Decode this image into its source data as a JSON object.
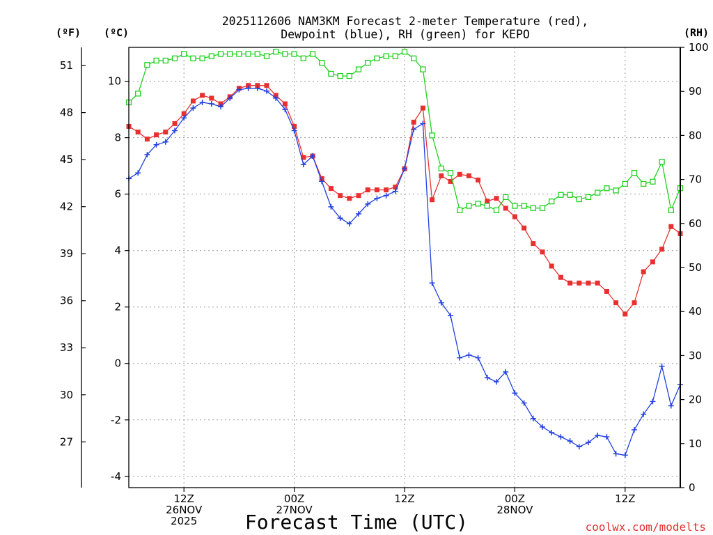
{
  "chart_data": {
    "type": "line",
    "title_lines": [
      "2025112606 NAM3KM Forecast 2-meter Temperature (red),",
      "Dewpoint (blue), RH (green) for KEPO"
    ],
    "xlabel": "Forecast Time (UTC)",
    "credit": "coolwx.com/modelts",
    "units": {
      "left_f": "(ºF)",
      "left_c": "(ºC)",
      "right": "(RH)"
    },
    "x_range_hours": [
      6,
      66
    ],
    "y_celsius_range": [
      -4.4,
      11.2
    ],
    "y_rh_range": [
      0,
      100
    ],
    "celsius_ticks": [
      -4,
      -2,
      0,
      2,
      4,
      6,
      8,
      10
    ],
    "fahrenheit_ticks": [
      27,
      30,
      33,
      36,
      39,
      42,
      45,
      48,
      51
    ],
    "rh_ticks": [
      0,
      10,
      20,
      30,
      40,
      50,
      60,
      70,
      80,
      90,
      100
    ],
    "x_ticks": [
      {
        "hour": 12,
        "lines": [
          "12Z",
          "26NOV",
          "2025"
        ]
      },
      {
        "hour": 24,
        "lines": [
          "00Z",
          "27NOV"
        ]
      },
      {
        "hour": 36,
        "lines": [
          "12Z"
        ]
      },
      {
        "hour": 48,
        "lines": [
          "00Z",
          "28NOV"
        ]
      },
      {
        "hour": 60,
        "lines": [
          "12Z"
        ]
      }
    ],
    "series": [
      {
        "name": "Temperature",
        "color": "#e83030",
        "marker": "filled-square",
        "axis": "celsius",
        "x": [
          6,
          7,
          8,
          9,
          10,
          11,
          12,
          13,
          14,
          15,
          16,
          17,
          18,
          19,
          20,
          21,
          22,
          23,
          24,
          25,
          26,
          27,
          28,
          29,
          30,
          31,
          32,
          33,
          34,
          35,
          36,
          37,
          38,
          39,
          40,
          41,
          42,
          43,
          44,
          45,
          46,
          47,
          48,
          49,
          50,
          51,
          52,
          53,
          54,
          55,
          56,
          57,
          58,
          59,
          60,
          61,
          62,
          63,
          64,
          65,
          66
        ],
        "values": [
          8.4,
          8.2,
          7.95,
          8.1,
          8.2,
          8.5,
          8.85,
          9.3,
          9.5,
          9.4,
          9.2,
          9.45,
          9.75,
          9.85,
          9.85,
          9.85,
          9.5,
          9.2,
          8.4,
          7.3,
          7.35,
          6.55,
          6.2,
          5.95,
          5.85,
          5.95,
          6.15,
          6.15,
          6.15,
          6.25,
          6.9,
          8.55,
          9.05,
          5.8,
          6.65,
          6.45,
          6.7,
          6.65,
          6.5,
          5.75,
          5.85,
          5.5,
          5.2,
          4.8,
          4.25,
          3.95,
          3.45,
          3.05,
          2.85,
          2.85,
          2.85,
          2.85,
          2.55,
          2.15,
          1.75,
          2.15,
          3.25,
          3.6,
          4.05,
          4.85,
          4.6
        ]
      },
      {
        "name": "Dewpoint",
        "color": "#2040e0",
        "marker": "plus",
        "axis": "celsius",
        "x": [
          6,
          7,
          8,
          9,
          10,
          11,
          12,
          13,
          14,
          15,
          16,
          17,
          18,
          19,
          20,
          21,
          22,
          23,
          24,
          25,
          26,
          27,
          28,
          29,
          30,
          31,
          32,
          33,
          34,
          35,
          36,
          37,
          38,
          39,
          40,
          41,
          42,
          43,
          44,
          45,
          46,
          47,
          48,
          49,
          50,
          51,
          52,
          53,
          54,
          55,
          56,
          57,
          58,
          59,
          60,
          61,
          62,
          63,
          64,
          65,
          66
        ],
        "values": [
          6.55,
          6.75,
          7.4,
          7.75,
          7.85,
          8.25,
          8.7,
          9.05,
          9.25,
          9.2,
          9.1,
          9.4,
          9.7,
          9.75,
          9.75,
          9.65,
          9.4,
          9.0,
          8.25,
          7.05,
          7.35,
          6.45,
          5.55,
          5.15,
          4.95,
          5.3,
          5.65,
          5.85,
          5.95,
          6.1,
          6.9,
          8.3,
          8.5,
          2.85,
          2.15,
          1.7,
          0.2,
          0.3,
          0.2,
          -0.5,
          -0.65,
          -0.3,
          -1.05,
          -1.4,
          -1.95,
          -2.25,
          -2.45,
          -2.6,
          -2.75,
          -2.95,
          -2.8,
          -2.55,
          -2.6,
          -3.2,
          -3.25,
          -2.35,
          -1.8,
          -1.35,
          -0.1,
          -1.5,
          -0.75
        ]
      },
      {
        "name": "RH",
        "color": "#20d020",
        "marker": "open-square",
        "axis": "rh",
        "x": [
          6,
          7,
          8,
          9,
          10,
          11,
          12,
          13,
          14,
          15,
          16,
          17,
          18,
          19,
          20,
          21,
          22,
          23,
          24,
          25,
          26,
          27,
          28,
          29,
          30,
          31,
          32,
          33,
          34,
          35,
          36,
          37,
          38,
          39,
          40,
          41,
          42,
          43,
          44,
          45,
          46,
          47,
          48,
          49,
          50,
          51,
          52,
          53,
          54,
          55,
          56,
          57,
          58,
          59,
          60,
          61,
          62,
          63,
          64,
          65,
          66
        ],
        "values": [
          87.5,
          89.5,
          96,
          97,
          97,
          97.5,
          98.5,
          97.5,
          97.5,
          98,
          98.5,
          98.5,
          98.5,
          98.5,
          98.5,
          98,
          99,
          98.5,
          98.5,
          97.5,
          98.5,
          96.5,
          94,
          93.5,
          93.5,
          95,
          96.5,
          97.5,
          98,
          98,
          99,
          97.5,
          95,
          80,
          72.5,
          71.5,
          63,
          64,
          64.5,
          64,
          63,
          66,
          64,
          64,
          63.5,
          63.5,
          65,
          66.5,
          66.5,
          65.5,
          66,
          67,
          68,
          67.5,
          69,
          71.5,
          69,
          69.5,
          74,
          63,
          68
        ]
      }
    ]
  }
}
